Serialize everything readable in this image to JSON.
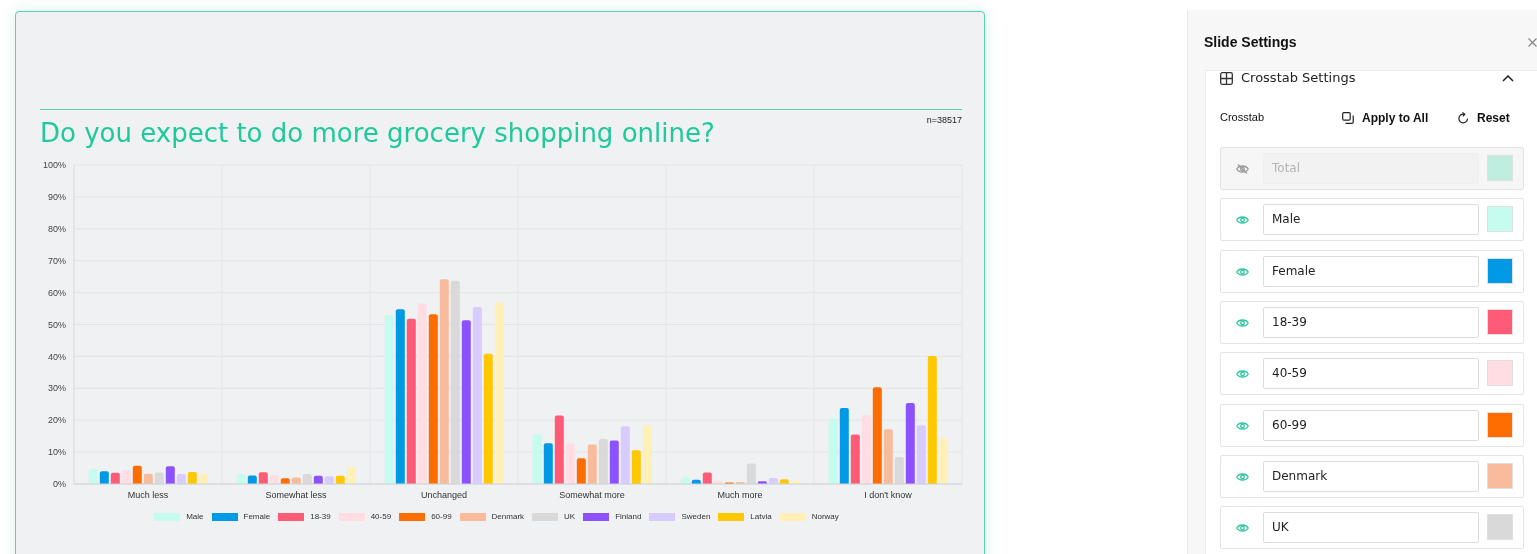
{
  "chart_data": [
    {
      "type": "bar",
      "title": "Do you expect to do more grocery shopping online?",
      "annotations": [
        "n=38517"
      ],
      "categories": [
        "Much less",
        "Somewhat less",
        "Unchanged",
        "Somewhat more",
        "Much more",
        "I don't know"
      ],
      "series": [
        {
          "name": "Male",
          "color": "#c6fbef",
          "values": [
            4.8,
            3.1,
            53.0,
            15.6,
            2.1,
            20.5
          ]
        },
        {
          "name": "Female",
          "color": "#0099e5",
          "values": [
            4.0,
            2.7,
            54.8,
            12.8,
            1.3,
            23.8
          ]
        },
        {
          "name": "18-39",
          "color": "#ff5a76",
          "values": [
            3.5,
            3.7,
            51.8,
            21.5,
            3.6,
            15.5
          ]
        },
        {
          "name": "40-59",
          "color": "#ffdde2",
          "values": [
            4.3,
            2.8,
            56.6,
            12.7,
            1.0,
            21.6
          ]
        },
        {
          "name": "60-99",
          "color": "#ff6d00",
          "values": [
            5.7,
            1.8,
            53.2,
            8.1,
            0.5,
            30.3
          ]
        },
        {
          "name": "Denmark",
          "color": "#f8bc9c",
          "values": [
            3.2,
            2.0,
            64.2,
            12.4,
            0.6,
            17.2
          ]
        },
        {
          "name": "UK",
          "color": "#d9d9d9",
          "values": [
            3.6,
            3.1,
            63.7,
            14.1,
            6.4,
            8.5
          ]
        },
        {
          "name": "Finland",
          "color": "#8c52ff",
          "values": [
            5.6,
            2.6,
            51.3,
            13.6,
            0.9,
            25.4
          ]
        },
        {
          "name": "Sweden",
          "color": "#d8cbff",
          "values": [
            3.1,
            2.4,
            55.5,
            18.1,
            1.9,
            18.4
          ]
        },
        {
          "name": "Latvia",
          "color": "#ffc800",
          "values": [
            3.8,
            2.6,
            40.8,
            10.6,
            1.5,
            40.1
          ]
        },
        {
          "name": "Norway",
          "color": "#fff0b8",
          "values": [
            3.3,
            5.3,
            56.9,
            18.5,
            1.0,
            14.3
          ]
        }
      ],
      "ylim": [
        0,
        100
      ],
      "yticks": [
        {
          "value": 0,
          "label": "0%"
        },
        {
          "value": 10,
          "label": "10%"
        },
        {
          "value": 20,
          "label": "20%"
        },
        {
          "value": 30,
          "label": "30%"
        },
        {
          "value": 40,
          "label": "40%"
        },
        {
          "value": 50,
          "label": "50%"
        },
        {
          "value": 60,
          "label": "60%"
        },
        {
          "value": 70,
          "label": "70%"
        },
        {
          "value": 80,
          "label": "80%"
        },
        {
          "value": 90,
          "label": "90%"
        },
        {
          "value": 100,
          "label": "100%"
        }
      ],
      "grid": true,
      "legend": "bottom"
    },
    {
      "type": "other",
      "title": "Slide Settings",
      "subtitle": "Crosstab Settings",
      "annotations": [
        "Crosstab",
        "Apply to All",
        "Reset"
      ],
      "categories": [
        "Total",
        "Male",
        "Female",
        "18-39",
        "40-59",
        "60-99",
        "Denmark",
        "UK"
      ]
    }
  ]
}
